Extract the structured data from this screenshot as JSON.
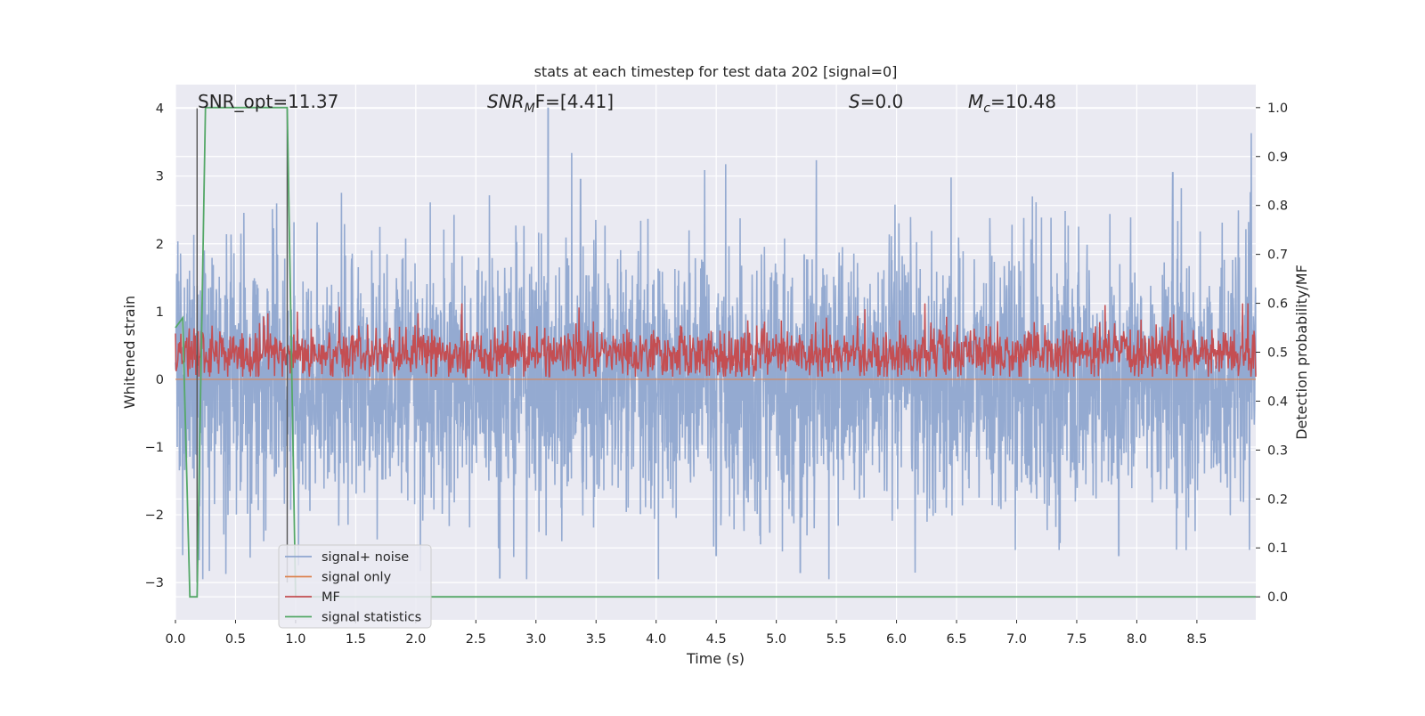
{
  "chart_data": {
    "type": "line",
    "title": "stats at each timestep for test data 202 [signal=0]",
    "xlabel": "Time (s)",
    "ylabel": "Whitened strain",
    "y2label": "Detection probability/MF",
    "xlim": [
      0.0,
      8.99
    ],
    "ylim": [
      -3.55,
      4.35
    ],
    "y2lim": [
      -0.047,
      1.047
    ],
    "xticks": [
      0.0,
      0.5,
      1.0,
      1.5,
      2.0,
      2.5,
      3.0,
      3.5,
      4.0,
      4.5,
      5.0,
      5.5,
      6.0,
      6.5,
      7.0,
      7.5,
      8.0,
      8.5
    ],
    "xtick_labels": [
      "0.0",
      "0.5",
      "1.0",
      "1.5",
      "2.0",
      "2.5",
      "3.0",
      "3.5",
      "4.0",
      "4.5",
      "5.0",
      "5.5",
      "6.0",
      "6.5",
      "7.0",
      "7.5",
      "8.0",
      "8.5"
    ],
    "yticks": [
      -3,
      -2,
      -1,
      0,
      1,
      2,
      3,
      4
    ],
    "ytick_labels": [
      "−3",
      "−2",
      "−1",
      "0",
      "1",
      "2",
      "3",
      "4"
    ],
    "y2ticks": [
      0.0,
      0.1,
      0.2,
      0.3,
      0.4,
      0.5,
      0.6,
      0.7,
      0.8,
      0.9,
      1.0
    ],
    "y2tick_labels": [
      "0.0",
      "0.1",
      "0.2",
      "0.3",
      "0.4",
      "0.5",
      "0.6",
      "0.7",
      "0.8",
      "0.9",
      "1.0"
    ],
    "grid": true,
    "legend_position": "lower-left",
    "annotations": [
      {
        "name": "snr-opt-annotation",
        "prefix": "SNR_opt",
        "subscript": "",
        "suffix": "=11.37",
        "italic": false
      },
      {
        "name": "snr-mf-annotation",
        "prefix": "SNR",
        "subscript": "M",
        "suffix": "F=[4.41]",
        "italic": true
      },
      {
        "name": "s-annotation",
        "prefix": "S",
        "subscript": "",
        "suffix": "=0.0",
        "italic": true
      },
      {
        "name": "mc-annotation",
        "prefix": "M",
        "subscript": "c",
        "suffix": "=10.48",
        "italic": true
      }
    ],
    "series": [
      {
        "name": "signal+ noise",
        "axis": "left",
        "color": "#8fa6cf",
        "noise_std": 1.0,
        "clip": [
          -2.95,
          4.0
        ],
        "notable_peaks": [
          {
            "x": 3.1,
            "y": 4.0
          },
          {
            "x": 3.37,
            "y": 2.95
          },
          {
            "x": 8.3,
            "y": 3.05
          },
          {
            "x": 2.7,
            "y": -2.93
          },
          {
            "x": 5.2,
            "y": -2.85
          },
          {
            "x": 4.5,
            "y": -2.6
          },
          {
            "x": 7.85,
            "y": -2.6
          }
        ]
      },
      {
        "name": "signal only",
        "axis": "left",
        "color": "#dd8452",
        "value": 0.0
      },
      {
        "name": "MF",
        "axis": "right",
        "color": "#c44e52",
        "band": [
          0.45,
          0.55
        ]
      },
      {
        "name": "signal statistics",
        "axis": "right",
        "color": "#55a868",
        "x": [
          0.0,
          0.06,
          0.12,
          0.18,
          0.25,
          0.93,
          1.0,
          8.99
        ],
        "values": [
          0.55,
          0.57,
          0.0,
          0.0,
          1.0,
          1.0,
          0.0,
          0.0
        ]
      }
    ],
    "vertical_lines": [
      {
        "x": 0.18,
        "y": [
          -3.0,
          4.0
        ],
        "color": "#555555"
      },
      {
        "x": 0.93,
        "y": [
          -3.0,
          4.0
        ],
        "color": "#555555"
      }
    ]
  }
}
